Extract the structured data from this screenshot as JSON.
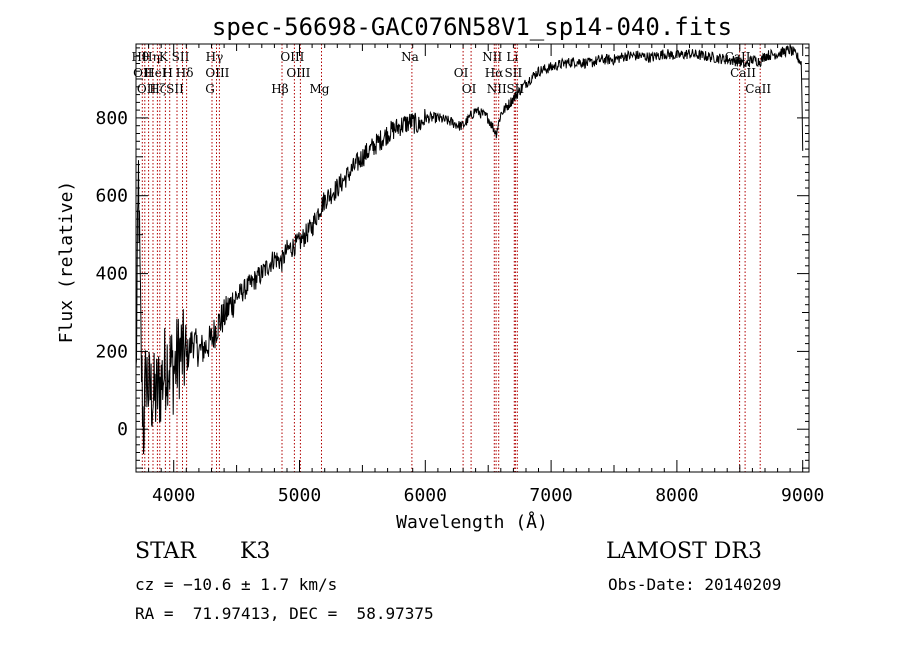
{
  "chart_data": {
    "type": "line",
    "title": "spec-56698-GAC076N58V1_sp14-040.fits",
    "xlabel": "Wavelength (Å)",
    "ylabel": "Flux (relative)",
    "xlim": [
      3700,
      9050
    ],
    "ylim": [
      -110,
      990
    ],
    "xticks": [
      4000,
      5000,
      6000,
      7000,
      8000,
      9000
    ],
    "yticks": [
      0,
      200,
      400,
      600,
      800
    ],
    "grid": false,
    "series": [
      {
        "name": "flux",
        "x": [
          3700,
          3720,
          3740,
          3760,
          3780,
          3800,
          3850,
          3900,
          3950,
          4000,
          4050,
          4100,
          4150,
          4200,
          4250,
          4300,
          4350,
          4400,
          4450,
          4500,
          4600,
          4700,
          4800,
          4860,
          4900,
          5000,
          5100,
          5150,
          5200,
          5300,
          5400,
          5500,
          5600,
          5700,
          5800,
          5890,
          5950,
          6000,
          6100,
          6200,
          6270,
          6300,
          6350,
          6400,
          6450,
          6500,
          6563,
          6600,
          6650,
          6700,
          6750,
          6800,
          6900,
          7000,
          7100,
          7200,
          7300,
          7400,
          7500,
          7600,
          7700,
          7800,
          7900,
          8000,
          8100,
          8200,
          8300,
          8400,
          8500,
          8542,
          8600,
          8662,
          8700,
          8800,
          8850,
          8900,
          8950,
          8990,
          9000
        ],
        "y": [
          120,
          650,
          200,
          0,
          150,
          100,
          80,
          120,
          180,
          150,
          200,
          180,
          230,
          200,
          210,
          230,
          270,
          290,
          320,
          340,
          370,
          400,
          440,
          430,
          460,
          480,
          520,
          560,
          590,
          620,
          660,
          700,
          730,
          760,
          780,
          790,
          780,
          800,
          800,
          790,
          780,
          780,
          800,
          820,
          810,
          800,
          760,
          810,
          830,
          850,
          870,
          890,
          920,
          930,
          940,
          945,
          940,
          950,
          950,
          960,
          960,
          955,
          965,
          960,
          965,
          960,
          955,
          950,
          945,
          935,
          950,
          945,
          960,
          965,
          970,
          975,
          960,
          940,
          720
        ]
      }
    ],
    "lines": [
      {
        "x": 3750,
        "label": "Hθ"
      },
      {
        "x": 3770,
        "label": "OII"
      },
      {
        "x": 3800,
        "label": "OII"
      },
      {
        "x": 3835,
        "label": "Hη"
      },
      {
        "x": 3870,
        "label": "HeI"
      },
      {
        "x": 3889,
        "label": "Hζ"
      },
      {
        "x": 3934,
        "label": "K"
      },
      {
        "x": 3968,
        "label": "H"
      },
      {
        "x": 4026,
        "label": "SII"
      },
      {
        "x": 4070,
        "label": "SII"
      },
      {
        "x": 4102,
        "label": "Hδ"
      },
      {
        "x": 4304,
        "label": "G"
      },
      {
        "x": 4340,
        "label": "Hγ"
      },
      {
        "x": 4363,
        "label": "OIII"
      },
      {
        "x": 4861,
        "label": "Hβ"
      },
      {
        "x": 4959,
        "label": "OIII"
      },
      {
        "x": 5007,
        "label": "OIII"
      },
      {
        "x": 5175,
        "label": "Mg"
      },
      {
        "x": 5893,
        "label": "Na"
      },
      {
        "x": 6300,
        "label": "OI"
      },
      {
        "x": 6364,
        "label": "OI"
      },
      {
        "x": 6548,
        "label": "NII"
      },
      {
        "x": 6563,
        "label": "Hα"
      },
      {
        "x": 6583,
        "label": "NII"
      },
      {
        "x": 6707,
        "label": "Li"
      },
      {
        "x": 6716,
        "label": "SII"
      },
      {
        "x": 6731,
        "label": "SII"
      },
      {
        "x": 8498,
        "label": "CaII"
      },
      {
        "x": 8542,
        "label": "CaII"
      },
      {
        "x": 8662,
        "label": "CaII"
      }
    ]
  },
  "info": {
    "class": "STAR",
    "subclass": "K3",
    "survey": "LAMOST DR3",
    "cz": "cz = −10.6 ± 1.7 km/s",
    "obs_date": "Obs-Date: 20140209",
    "radec": "RA =  71.97413, DEC =  58.97375"
  }
}
